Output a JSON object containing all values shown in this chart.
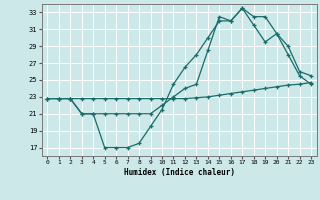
{
  "title": "",
  "xlabel": "Humidex (Indice chaleur)",
  "bg_color": "#cce8e8",
  "grid_color": "#ffffff",
  "line_color": "#1a6b6b",
  "ylim": [
    16,
    34
  ],
  "xlim": [
    -0.5,
    23.5
  ],
  "yticks": [
    17,
    19,
    21,
    23,
    25,
    27,
    29,
    31,
    33
  ],
  "xticks": [
    0,
    1,
    2,
    3,
    4,
    5,
    6,
    7,
    8,
    9,
    10,
    11,
    12,
    13,
    14,
    15,
    16,
    17,
    18,
    19,
    20,
    21,
    22,
    23
  ],
  "series1_x": [
    0,
    1,
    2,
    3,
    4,
    5,
    6,
    7,
    8,
    9,
    10,
    11,
    12,
    13,
    14,
    15,
    16,
    17,
    18,
    19,
    20,
    21,
    22,
    23
  ],
  "series1_y": [
    22.8,
    22.8,
    22.8,
    22.8,
    22.8,
    22.8,
    22.8,
    22.8,
    22.8,
    22.8,
    22.8,
    22.8,
    22.8,
    22.9,
    23.0,
    23.2,
    23.4,
    23.6,
    23.8,
    24.0,
    24.2,
    24.4,
    24.5,
    24.7
  ],
  "series2_x": [
    0,
    1,
    2,
    3,
    4,
    5,
    6,
    7,
    8,
    9,
    10,
    11,
    12,
    13,
    14,
    15,
    16,
    17,
    18,
    19,
    20,
    21,
    22,
    23
  ],
  "series2_y": [
    22.8,
    22.8,
    22.8,
    21.0,
    21.0,
    17.0,
    17.0,
    17.0,
    17.5,
    19.5,
    21.5,
    24.5,
    26.5,
    28.0,
    30.0,
    32.0,
    32.0,
    33.5,
    31.5,
    29.5,
    30.5,
    29.0,
    26.0,
    25.5
  ],
  "series3_x": [
    0,
    1,
    2,
    3,
    4,
    5,
    6,
    7,
    8,
    9,
    10,
    11,
    12,
    13,
    14,
    15,
    16,
    17,
    18,
    19,
    20,
    21,
    22,
    23
  ],
  "series3_y": [
    22.8,
    22.8,
    22.8,
    21.0,
    21.0,
    21.0,
    21.0,
    21.0,
    21.0,
    21.0,
    22.0,
    23.0,
    24.0,
    24.5,
    28.5,
    32.5,
    32.0,
    33.5,
    32.5,
    32.5,
    30.5,
    28.0,
    25.5,
    24.5
  ]
}
